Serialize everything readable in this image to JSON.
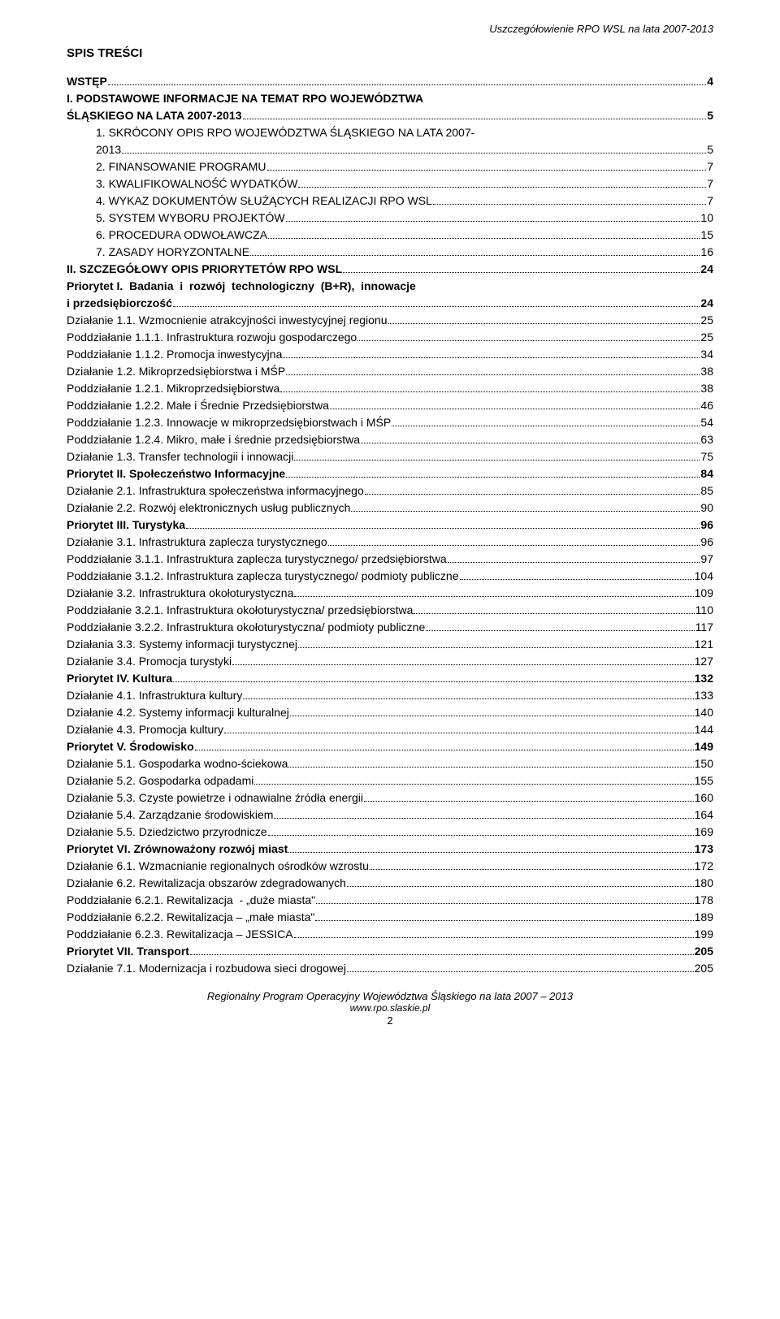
{
  "header_right": "Uszczegółowienie RPO WSL na lata 2007-2013",
  "main_heading": "SPIS TREŚCI",
  "toc": [
    {
      "label": "WSTĘP",
      "page": "4",
      "bold": true
    },
    {
      "label": "I. PODSTAWOWE INFORMACJE NA TEMAT RPO WOJEWÓDZTWA ŚLĄSKIEGO NA LATA 2007-2013",
      "page": "5",
      "bold": true,
      "wrap_after": "I. PODSTAWOWE INFORMACJE NA TEMAT RPO WOJEWÓDZTWA",
      "wrap_rest": "ŚLĄSKIEGO NA LATA 2007-2013"
    },
    {
      "label": "1. SKRÓCONY OPIS RPO WOJEWÓDZTWA ŚLĄSKIEGO NA LATA 2007-\n2013",
      "page": " 5",
      "indent": 1,
      "wrap_after": "1. SKRÓCONY OPIS RPO WOJEWÓDZTWA ŚLĄSKIEGO NA LATA 2007-",
      "wrap_rest": "2013",
      "wrap_rest_indent": 2
    },
    {
      "label": "2. FINANSOWANIE PROGRAMU",
      "page": " 7",
      "indent": 1
    },
    {
      "label": "3. KWALIFIKOWALNOŚĆ WYDATKÓW",
      "page": " 7",
      "indent": 1
    },
    {
      "label": "4. WYKAZ DOKUMENTÓW SŁUŻĄCYCH REALIZACJI RPO WSL",
      "page": " 7",
      "indent": 1
    },
    {
      "label": "5. SYSTEM WYBORU PROJEKTÓW",
      "page": "10",
      "indent": 1
    },
    {
      "label": "6. PROCEDURA ODWOŁAWCZA",
      "page": "15",
      "indent": 1
    },
    {
      "label": "7. ZASADY HORYZONTALNE",
      "page": "16",
      "indent": 1
    },
    {
      "label": "II. SZCZEGÓŁOWY OPIS PRIORYTETÓW RPO WSL",
      "page": "24",
      "bold": true
    },
    {
      "label": "Priorytet I. Badania i rozwój technologiczny (B+R), innowacje i przedsiębiorczość",
      "page": "24",
      "bold": true,
      "wrap_after": "Priorytet I.  Badania  i  rozwój  technologiczny  (B+R),  innowacje",
      "wrap_rest": "i przedsiębiorczość"
    },
    {
      "label": "Działanie 1.1. Wzmocnienie atrakcyjności inwestycyjnej regionu",
      "page": "25"
    },
    {
      "label": "Poddziałanie 1.1.1. Infrastruktura rozwoju gospodarczego",
      "page": "25"
    },
    {
      "label": "Poddziałanie 1.1.2. Promocja inwestycyjna",
      "page": "34"
    },
    {
      "label": "Działanie 1.2. Mikroprzedsiębiorstwa i MŚP",
      "page": "38"
    },
    {
      "label": "Poddziałanie 1.2.1. Mikroprzedsiębiorstwa",
      "page": "38"
    },
    {
      "label": "Poddziałanie 1.2.2. Małe i Średnie Przedsiębiorstwa",
      "page": "46"
    },
    {
      "label": "Poddziałanie 1.2.3. Innowacje w mikroprzedsiębiorstwach i MŚP",
      "page": "54"
    },
    {
      "label": "Poddziałanie 1.2.4. Mikro, małe i średnie przedsiębiorstwa",
      "page": "63"
    },
    {
      "label": "Działanie 1.3. Transfer technologii i innowacji",
      "page": "75"
    },
    {
      "label": "Priorytet II. Społeczeństwo Informacyjne",
      "page": "84",
      "bold": true
    },
    {
      "label": "Działanie 2.1. Infrastruktura społeczeństwa informacyjnego",
      "page": "85"
    },
    {
      "label": "Działanie 2.2. Rozwój elektronicznych usług publicznych",
      "page": "90"
    },
    {
      "label": "Priorytet III. Turystyka",
      "page": "96",
      "bold": true
    },
    {
      "label": "Działanie 3.1. Infrastruktura zaplecza turystycznego",
      "page": "96"
    },
    {
      "label": "Poddziałanie 3.1.1. Infrastruktura zaplecza turystycznego/ przedsiębiorstwa",
      "page": "97"
    },
    {
      "label": "Poddziałanie 3.1.2. Infrastruktura zaplecza turystycznego/ podmioty publiczne",
      "page": " 104"
    },
    {
      "label": "Działanie 3.2. Infrastruktura okołoturystyczna",
      "page": " 109"
    },
    {
      "label": "Poddziałanie 3.2.1. Infrastruktura okołoturystyczna/ przedsiębiorstwa",
      "page": " 110"
    },
    {
      "label": "Poddziałanie 3.2.2. Infrastruktura okołoturystyczna/ podmioty publiczne",
      "page": " 117"
    },
    {
      "label": "Działania 3.3. Systemy informacji turystycznej",
      "page": " 121"
    },
    {
      "label": "Działanie 3.4. Promocja turystyki",
      "page": " 127"
    },
    {
      "label": "Priorytet IV. Kultura",
      "page": " 132",
      "bold": true
    },
    {
      "label": "Działanie 4.1. Infrastruktura kultury",
      "page": " 133"
    },
    {
      "label": "Działanie 4.2. Systemy informacji kulturalnej",
      "page": " 140"
    },
    {
      "label": "Działanie 4.3. Promocja kultury",
      "page": " 144"
    },
    {
      "label": "Priorytet V. Środowisko",
      "page": " 149",
      "bold": true
    },
    {
      "label": "Działanie 5.1. Gospodarka wodno-ściekowa",
      "page": " 150"
    },
    {
      "label": "Działanie 5.2. Gospodarka odpadami",
      "page": " 155"
    },
    {
      "label": "Działanie 5.3. Czyste powietrze i odnawialne źródła energii",
      "page": " 160"
    },
    {
      "label": "Działanie 5.4. Zarządzanie środowiskiem",
      "page": " 164"
    },
    {
      "label": "Działanie 5.5. Dziedzictwo przyrodnicze",
      "page": " 169"
    },
    {
      "label": "Priorytet VI. Zrównoważony rozwój miast",
      "page": " 173",
      "bold": true
    },
    {
      "label": "Działanie 6.1. Wzmacnianie regionalnych ośrodków wzrostu",
      "page": " 172"
    },
    {
      "label": "Działanie 6.2. Rewitalizacja obszarów zdegradowanych",
      "page": " 180"
    },
    {
      "label": "Poddziałanie 6.2.1. Rewitalizacja  - „duże miasta\"",
      "page": " 178"
    },
    {
      "label": "Poddziałanie 6.2.2. Rewitalizacja – „małe miasta\"",
      "page": " 189"
    },
    {
      "label": "Poddziałanie 6.2.3. Rewitalizacja – JESSICA",
      "page": " 199"
    },
    {
      "label": "Priorytet VII. Transport",
      "page": " 205",
      "bold": true
    },
    {
      "label": "Działanie 7.1. Modernizacja i rozbudowa sieci drogowej",
      "page": " 205"
    }
  ],
  "footer": {
    "line1": "Regionalny Program Operacyjny Województwa Śląskiego na lata 2007 – 2013",
    "site": "www.rpo.slaskie.pl",
    "page_number": "2"
  }
}
